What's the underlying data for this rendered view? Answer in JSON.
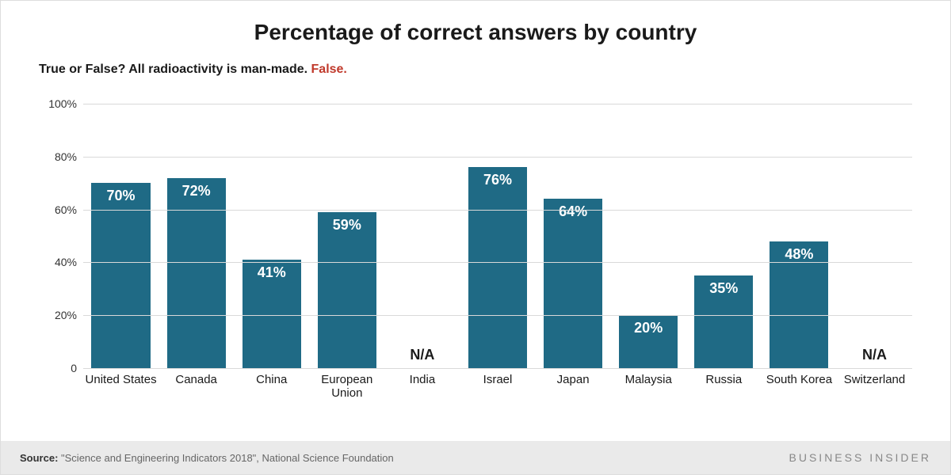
{
  "title": "Percentage of correct answers by country",
  "subtitle_prefix": "True or False? All radioactivity is man-made. ",
  "subtitle_answer": "False.",
  "answer_color": "#c0392b",
  "chart": {
    "type": "bar",
    "bar_color": "#1f6a85",
    "background_color": "#ffffff",
    "grid_color": "#d9d9d9",
    "ylim": [
      0,
      100
    ],
    "ytick_step": 20,
    "ytick_labels": [
      "0",
      "20%",
      "40%",
      "60%",
      "80%",
      "100%"
    ],
    "value_label_color": "#ffffff",
    "value_label_fontsize": 18,
    "na_label_color": "#1a1a1a",
    "x_label_fontsize": 15,
    "categories": [
      "United States",
      "Canada",
      "China",
      "European Union",
      "India",
      "Israel",
      "Japan",
      "Malaysia",
      "Russia",
      "South Korea",
      "Switzerland"
    ],
    "values": [
      70,
      72,
      41,
      59,
      null,
      76,
      64,
      20,
      35,
      48,
      null
    ],
    "value_labels": [
      "70%",
      "72%",
      "41%",
      "59%",
      "N/A",
      "76%",
      "64%",
      "20%",
      "35%",
      "48%",
      "N/A"
    ]
  },
  "footer": {
    "source_label": "Source: ",
    "source_text": "\"Science and Engineering Indicators 2018\", National Science Foundation",
    "brand": "BUSINESS INSIDER",
    "background": "#eaeaea"
  }
}
